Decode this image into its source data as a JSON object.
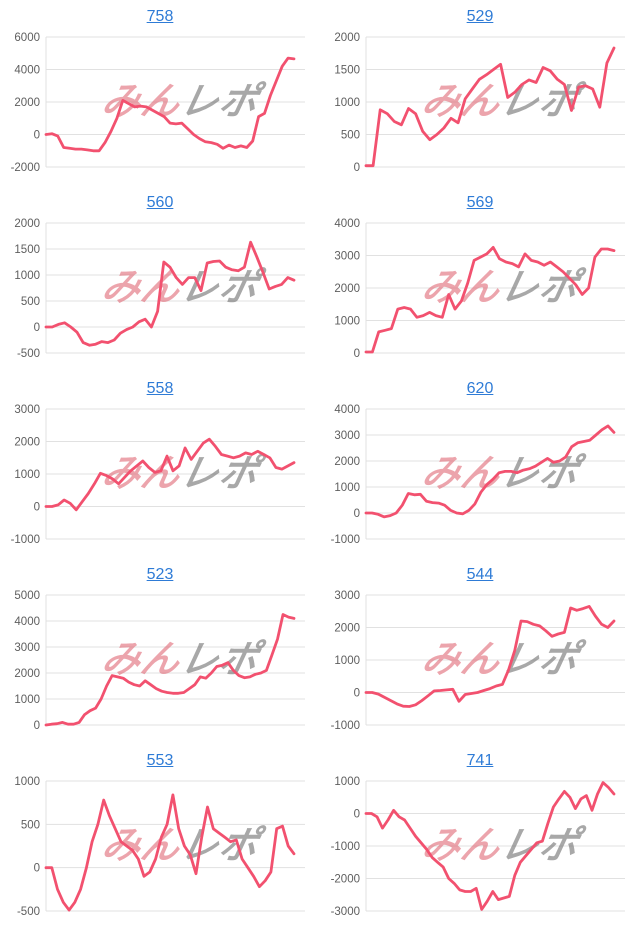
{
  "page": {
    "background": "#ffffff"
  },
  "style": {
    "line_color": "#f2516f",
    "grid_color": "#e1e1e1",
    "axis_label_color": "#5e5e5e",
    "title_color": "#2e7bd6",
    "watermark_pink": "#e16976",
    "watermark_gray": "#6f6f6f",
    "watermark_opacity": 0.6
  },
  "watermark": {
    "text_pink": "みん",
    "text_gray": "レポ"
  },
  "chart_data": [
    {
      "type": "line",
      "title": "758",
      "ylim": [
        -2000,
        6000
      ],
      "yticks": [
        6000,
        4000,
        2000,
        0,
        -2000
      ],
      "values": [
        0,
        50,
        -100,
        -800,
        -850,
        -900,
        -900,
        -950,
        -1000,
        -1000,
        -500,
        200,
        1000,
        2100,
        1900,
        1700,
        1750,
        1700,
        1500,
        1300,
        1100,
        700,
        650,
        700,
        350,
        0,
        -250,
        -450,
        -500,
        -600,
        -850,
        -650,
        -800,
        -700,
        -800,
        -400,
        1100,
        1300,
        2400,
        3300,
        4200,
        4700,
        4650
      ]
    },
    {
      "type": "line",
      "title": "529",
      "ylim": [
        0,
        2000
      ],
      "yticks": [
        2000,
        1500,
        1000,
        500,
        0
      ],
      "values": [
        20,
        20,
        880,
        820,
        700,
        650,
        900,
        820,
        550,
        420,
        500,
        600,
        750,
        680,
        1050,
        1200,
        1350,
        1420,
        1500,
        1580,
        1070,
        1150,
        1270,
        1340,
        1300,
        1530,
        1480,
        1350,
        1270,
        870,
        1230,
        1250,
        1200,
        920,
        1600,
        1830
      ]
    },
    {
      "type": "line",
      "title": "560",
      "ylim": [
        -500,
        2000
      ],
      "yticks": [
        2000,
        1500,
        1000,
        500,
        0,
        -500
      ],
      "values": [
        0,
        0,
        50,
        80,
        0,
        -100,
        -300,
        -350,
        -330,
        -280,
        -300,
        -250,
        -120,
        -50,
        0,
        100,
        150,
        0,
        300,
        1250,
        1150,
        950,
        820,
        950,
        950,
        700,
        1230,
        1260,
        1270,
        1150,
        1100,
        1080,
        1150,
        1630,
        1350,
        1050,
        730,
        780,
        820,
        950,
        900
      ]
    },
    {
      "type": "line",
      "title": "569",
      "ylim": [
        0,
        4000
      ],
      "yticks": [
        4000,
        3000,
        2000,
        1000,
        0
      ],
      "values": [
        30,
        30,
        650,
        700,
        750,
        1350,
        1400,
        1350,
        1100,
        1150,
        1250,
        1150,
        1100,
        1800,
        1350,
        1600,
        2150,
        2850,
        2950,
        3050,
        3250,
        2900,
        2800,
        2750,
        2650,
        3050,
        2850,
        2800,
        2700,
        2800,
        2650,
        2500,
        2300,
        2100,
        1800,
        2000,
        2950,
        3200,
        3200,
        3150
      ]
    },
    {
      "type": "line",
      "title": "558",
      "ylim": [
        -1000,
        3000
      ],
      "yticks": [
        3000,
        2000,
        1000,
        0,
        -1000
      ],
      "values": [
        0,
        0,
        50,
        200,
        100,
        -100,
        150,
        400,
        700,
        1020,
        950,
        850,
        700,
        900,
        1100,
        1250,
        1400,
        1200,
        1050,
        1100,
        1550,
        1100,
        1250,
        1800,
        1450,
        1700,
        1950,
        2070,
        1850,
        1600,
        1550,
        1500,
        1550,
        1650,
        1600,
        1700,
        1600,
        1500,
        1200,
        1150,
        1250,
        1350
      ]
    },
    {
      "type": "line",
      "title": "620",
      "ylim": [
        -1000,
        4000
      ],
      "yticks": [
        4000,
        3000,
        2000,
        1000,
        0,
        -1000
      ],
      "values": [
        0,
        0,
        -50,
        -150,
        -100,
        0,
        300,
        750,
        700,
        720,
        450,
        400,
        380,
        300,
        100,
        0,
        -30,
        100,
        350,
        800,
        1100,
        1300,
        1550,
        1600,
        1600,
        1550,
        1650,
        1700,
        1800,
        1950,
        2100,
        1950,
        2000,
        2150,
        2550,
        2700,
        2750,
        2800,
        3000,
        3200,
        3350,
        3100
      ]
    },
    {
      "type": "line",
      "title": "523",
      "ylim": [
        0,
        5000
      ],
      "yticks": [
        5000,
        4000,
        3000,
        2000,
        1000,
        0
      ],
      "values": [
        0,
        30,
        50,
        100,
        30,
        30,
        100,
        400,
        550,
        650,
        1000,
        1500,
        1900,
        1850,
        1800,
        1650,
        1550,
        1500,
        1700,
        1550,
        1400,
        1300,
        1250,
        1220,
        1220,
        1250,
        1400,
        1550,
        1850,
        1800,
        2000,
        2250,
        2300,
        2400,
        2100,
        1900,
        1820,
        1850,
        1950,
        2000,
        2100,
        2700,
        3300,
        4250,
        4150,
        4100
      ]
    },
    {
      "type": "line",
      "title": "544",
      "ylim": [
        -1000,
        3000
      ],
      "yticks": [
        3000,
        2000,
        1000,
        0,
        -1000
      ],
      "values": [
        0,
        0,
        -50,
        -150,
        -250,
        -350,
        -420,
        -430,
        -380,
        -250,
        -100,
        50,
        60,
        80,
        100,
        -270,
        -60,
        -30,
        0,
        60,
        120,
        200,
        250,
        700,
        1300,
        2200,
        2180,
        2100,
        2050,
        1900,
        1730,
        1800,
        1850,
        2600,
        2530,
        2580,
        2650,
        2350,
        2100,
        2000,
        2200
      ]
    },
    {
      "type": "line",
      "title": "553",
      "ylim": [
        -500,
        1000
      ],
      "yticks": [
        1000,
        500,
        0,
        -500
      ],
      "values": [
        0,
        0,
        -250,
        -400,
        -490,
        -400,
        -250,
        0,
        300,
        500,
        780,
        600,
        450,
        300,
        250,
        200,
        100,
        -100,
        -50,
        100,
        350,
        500,
        840,
        450,
        250,
        150,
        -70,
        350,
        700,
        450,
        400,
        350,
        300,
        320,
        100,
        0,
        -100,
        -220,
        -150,
        -50,
        450,
        480,
        250,
        160
      ]
    },
    {
      "type": "line",
      "title": "741",
      "ylim": [
        -3000,
        1000
      ],
      "yticks": [
        1000,
        0,
        -1000,
        -2000,
        -3000
      ],
      "values": [
        0,
        0,
        -100,
        -450,
        -200,
        100,
        -100,
        -200,
        -450,
        -700,
        -900,
        -1100,
        -1350,
        -1500,
        -1650,
        -2000,
        -2150,
        -2350,
        -2400,
        -2400,
        -2300,
        -2950,
        -2700,
        -2400,
        -2650,
        -2600,
        -2550,
        -1900,
        -1500,
        -1300,
        -1100,
        -900,
        -850,
        -300,
        200,
        450,
        680,
        500,
        150,
        450,
        550,
        100,
        600,
        950,
        800,
        600
      ]
    }
  ]
}
